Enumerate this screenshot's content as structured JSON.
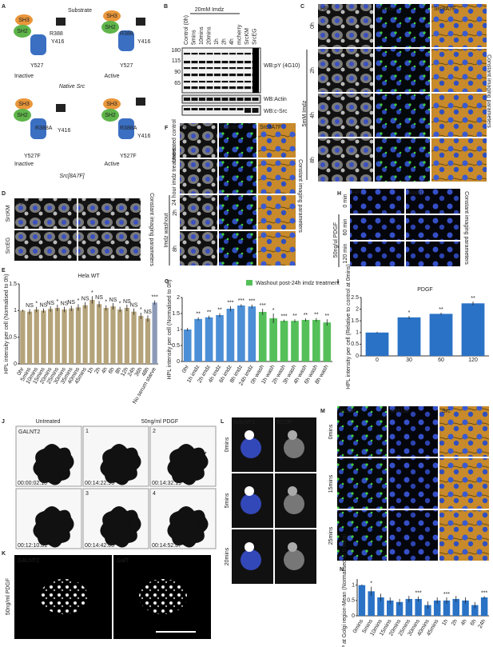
{
  "figure": {
    "A": {
      "letter": "A",
      "inactive": "Inactive",
      "active": "Active",
      "native": "Native Src",
      "mutant": "Src[8A7F]",
      "substrate": "Substrate",
      "r388": "R388",
      "y416": "Y416",
      "y527": "Y527",
      "r388a": "R388A",
      "y527f": "Y527F",
      "sh3": "SH3",
      "sh2": "SH2"
    },
    "B": {
      "letter": "B",
      "treatment": "20mM Imdz",
      "lanes": [
        "Control (0h)",
        "5mins",
        "10mins",
        "20mins",
        "1h",
        "2h",
        "4h",
        "mcherry",
        "SrcKM",
        "SrcEG"
      ],
      "mw": [
        "180",
        "115",
        "90",
        "65"
      ],
      "blots": [
        "WB:pY (4G10)",
        "WB:Actin",
        "WB:c-Src"
      ]
    },
    "C": {
      "letter": "C",
      "channels": [
        "HPL",
        "Giantin",
        "Src8A7F"
      ],
      "rows": [
        "0h",
        "2h",
        "4h",
        "8h"
      ],
      "treatment": "5mM Imdz",
      "note": "Constant imaging parameters"
    },
    "D": {
      "letter": "D",
      "channels": [
        "HPL",
        "Src"
      ],
      "rows": [
        "SrcKM",
        "SrcEG"
      ],
      "note": "Constant imaging parameters"
    },
    "E": {
      "letter": "E"
    },
    "F": {
      "letter": "F",
      "channels": [
        "HPL",
        "Giantin",
        "Src8A7F"
      ],
      "rows": [
        "Untreated control",
        "24 hour imdz treatment",
        "2h",
        "8h"
      ],
      "washout": "Imdz washout",
      "note": "Constant imaging parameters"
    },
    "G": {
      "letter": "G"
    },
    "H": {
      "letter": "H",
      "channels": [
        "HPL",
        "ManII"
      ],
      "rows": [
        "0 min",
        "60 min",
        "120 min"
      ],
      "treatment": "50ng/ul PDGF",
      "note": "Constant imaging parameters"
    },
    "I": {
      "letter": "I"
    },
    "J": {
      "letter": "J",
      "untreated": "Untreated",
      "pdgf": "50ng/ml PDGF",
      "marker": "GALNT2",
      "frames": [
        "1",
        "2",
        "3",
        "4"
      ],
      "times": [
        "00:00:02.10",
        "00:14:22.96",
        "00:14:32.19",
        "00:12:10.81",
        "00:14:42.03",
        "00:14:52.87"
      ]
    },
    "K": {
      "letter": "K",
      "channels": [
        "GALNT2",
        "GalT"
      ],
      "treatment": "50ng/ml PDGF"
    },
    "L": {
      "letter": "L",
      "channels": [
        "GALNT1",
        "BCOP"
      ],
      "rows": [
        "0mins",
        "5mins",
        "20mins"
      ]
    },
    "M": {
      "letter": "M",
      "channels": [
        "BCOP",
        "GM130",
        "Src"
      ],
      "rows": [
        "0mins",
        "15mins",
        "25mins"
      ]
    },
    "N": {
      "letter": "N"
    }
  },
  "chart_data": [
    {
      "type": "bar",
      "title": "Hela WT",
      "ylabel": "HPL intensity per cell (Normalised to 0h)",
      "categories": [
        "0hr",
        "5mins",
        "10mins",
        "15mins",
        "20mins",
        "25mins",
        "30mins",
        "35mins",
        "40mins",
        "45mins",
        "1h",
        "2h",
        "4h",
        "6h",
        "8h",
        "12h",
        "24h",
        "36h",
        "48h",
        "No serum starve"
      ],
      "values": [
        1.0,
        0.98,
        1.02,
        1.0,
        1.03,
        1.05,
        1.02,
        1.04,
        1.06,
        1.1,
        1.2,
        1.12,
        1.05,
        1.08,
        1.02,
        1.05,
        0.98,
        0.9,
        0.85,
        1.15
      ],
      "errors": [
        0.02,
        0.05,
        0.05,
        0.04,
        0.05,
        0.06,
        0.05,
        0.05,
        0.06,
        0.06,
        0.07,
        0.06,
        0.05,
        0.06,
        0.05,
        0.06,
        0.06,
        0.06,
        0.06,
        0.04
      ],
      "annotations": [
        "",
        "NS",
        "*",
        "NS",
        "NS",
        "*",
        "NS",
        "NS",
        "*",
        "NS",
        "*",
        "NS",
        "*",
        "NS",
        "*",
        "NS",
        "NS",
        "*",
        "NS",
        "***"
      ],
      "color": "#b5a37a",
      "colors": {
        "19": "#8c9ab8"
      },
      "ylim": [
        0,
        1.5
      ],
      "yticks": [
        0,
        0.5,
        1,
        1.5
      ]
    },
    {
      "type": "bar",
      "ylabel": "HPL intensity per cell (Normalised to 0h)",
      "categories": [
        "0hr",
        "1h imdz",
        "2h imdz",
        "4h imdz",
        "6h imdz",
        "8h imdz",
        "24h imdz",
        "0h wash",
        "1h wash",
        "2h wash",
        "3h wash",
        "4h wash",
        "6h wash",
        "8h wash"
      ],
      "values": [
        1.0,
        1.33,
        1.38,
        1.45,
        1.65,
        1.75,
        1.72,
        1.55,
        1.35,
        1.27,
        1.27,
        1.3,
        1.3,
        1.22
      ],
      "errors": [
        0.05,
        0.05,
        0.05,
        0.06,
        0.08,
        0.04,
        0.06,
        0.1,
        0.15,
        0.04,
        0.05,
        0.05,
        0.06,
        0.1
      ],
      "annotations": [
        "",
        "**",
        "**",
        "**",
        "***",
        "***",
        "***",
        "***",
        "*",
        "***",
        "**",
        "**",
        "**",
        "**"
      ],
      "color": "#4c8fd6",
      "colors": {
        "7": "#55c05a",
        "8": "#55c05a",
        "9": "#55c05a",
        "10": "#55c05a",
        "11": "#55c05a",
        "12": "#55c05a",
        "13": "#55c05a"
      },
      "legend": {
        "label": "Washout post-24h imdz treatment",
        "color": "#55c05a"
      },
      "ylim": [
        0,
        2
      ],
      "yticks": [
        0,
        0.5,
        1,
        1.5,
        2
      ]
    },
    {
      "type": "bar",
      "title": "PDGF",
      "ylabel": "HPL intensity per cell (Relative to control at 0mins)",
      "categories": [
        "0",
        "30",
        "60",
        "120"
      ],
      "values": [
        1.0,
        1.65,
        1.8,
        2.25
      ],
      "errors": [
        0.03,
        0.06,
        0.05,
        0.08
      ],
      "annotations": [
        "",
        "*",
        "**",
        "**"
      ],
      "color": "#2a72c6",
      "ylim": [
        0,
        2.5
      ],
      "yticks": [
        0,
        0.5,
        1,
        1.5,
        2,
        2.5
      ]
    },
    {
      "type": "bar",
      "ylabel": "BCOP at Golgi region-Mean (Normalised to 0 mins)",
      "categories": [
        "0mins",
        "5mins",
        "10mins",
        "15mins",
        "20mins",
        "25mins",
        "30mins",
        "40mins",
        "45mins",
        "1h",
        "2h",
        "4h",
        "6h",
        "24h"
      ],
      "values": [
        1.0,
        0.8,
        0.6,
        0.5,
        0.45,
        0.55,
        0.55,
        0.35,
        0.5,
        0.5,
        0.55,
        0.5,
        0.35,
        0.6
      ],
      "errors": [
        0.02,
        0.15,
        0.12,
        0.1,
        0.1,
        0.1,
        0.08,
        0.12,
        0.1,
        0.1,
        0.1,
        0.1,
        0.1,
        0.04
      ],
      "annotations": [
        "",
        "*",
        "",
        "",
        "",
        "",
        "***",
        "",
        "",
        "***",
        "",
        "",
        "",
        "***"
      ],
      "color": "#2a72c6",
      "ylim": [
        0,
        1.2
      ],
      "yticks": [
        0,
        0.5,
        1
      ]
    }
  ]
}
